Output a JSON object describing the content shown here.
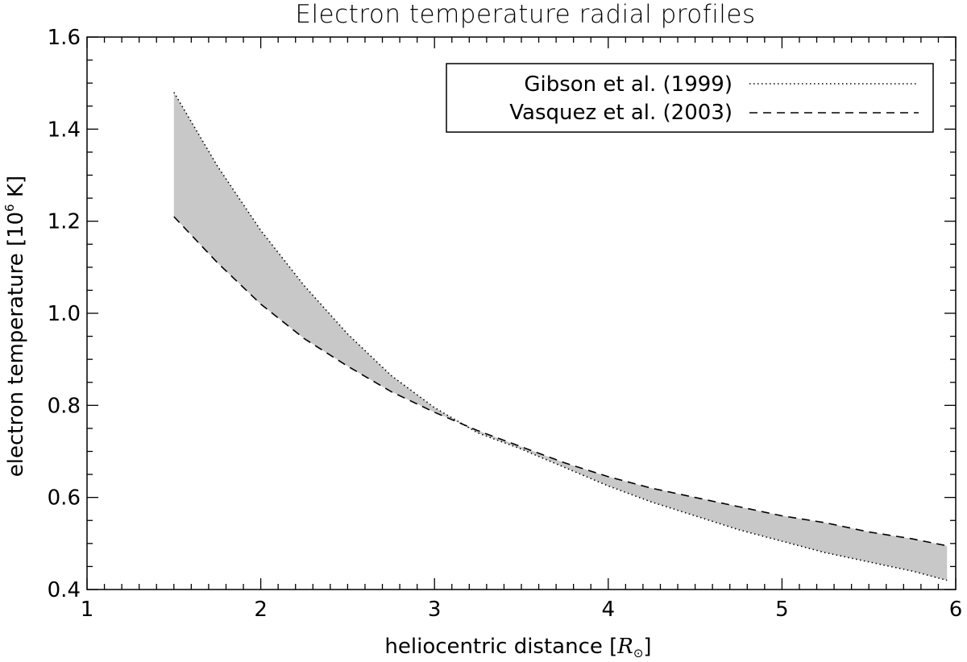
{
  "chart_data": {
    "type": "area",
    "title": "Electron temperature radial profiles",
    "xlabel_prefix": "heliocentric distance [",
    "xlabel_unit": "R",
    "xlabel_sub": "⊙",
    "xlabel_suffix": "]",
    "ylabel_prefix": "electron temperature [10",
    "ylabel_sup": "6",
    "ylabel_suffix": " K]",
    "xlim": [
      1,
      6
    ],
    "ylim": [
      0.4,
      1.6
    ],
    "x_ticks": [
      1,
      2,
      3,
      4,
      5,
      6
    ],
    "x_tick_labels": [
      "1",
      "2",
      "3",
      "4",
      "5",
      "6"
    ],
    "y_ticks": [
      0.4,
      0.6,
      0.8,
      1.0,
      1.2,
      1.4,
      1.6
    ],
    "y_tick_labels": [
      "0.4",
      "0.6",
      "0.8",
      "1.0",
      "1.2",
      "1.4",
      "1.6"
    ],
    "fill_color": "#c8c8c8",
    "legend_position": "top-right",
    "series": [
      {
        "name": "Gibson et al. (1999)",
        "style": "dotted",
        "x": [
          1.5,
          1.75,
          2.0,
          2.25,
          2.5,
          2.75,
          3.0,
          3.25,
          3.5,
          3.75,
          4.0,
          4.25,
          4.5,
          4.75,
          5.0,
          5.25,
          5.5,
          5.75,
          5.95
        ],
        "y": [
          1.48,
          1.32,
          1.18,
          1.06,
          0.955,
          0.865,
          0.795,
          0.74,
          0.705,
          0.665,
          0.625,
          0.59,
          0.56,
          0.53,
          0.505,
          0.48,
          0.46,
          0.44,
          0.42
        ]
      },
      {
        "name": "Vasquez et al. (2003)",
        "style": "dashed",
        "x": [
          1.5,
          1.75,
          2.0,
          2.25,
          2.5,
          2.75,
          3.0,
          3.25,
          3.5,
          3.75,
          4.0,
          4.25,
          4.5,
          4.75,
          5.0,
          5.25,
          5.5,
          5.75,
          5.95
        ],
        "y": [
          1.21,
          1.11,
          1.02,
          0.945,
          0.885,
          0.83,
          0.785,
          0.745,
          0.71,
          0.675,
          0.645,
          0.62,
          0.6,
          0.58,
          0.56,
          0.545,
          0.525,
          0.51,
          0.495
        ]
      }
    ]
  }
}
